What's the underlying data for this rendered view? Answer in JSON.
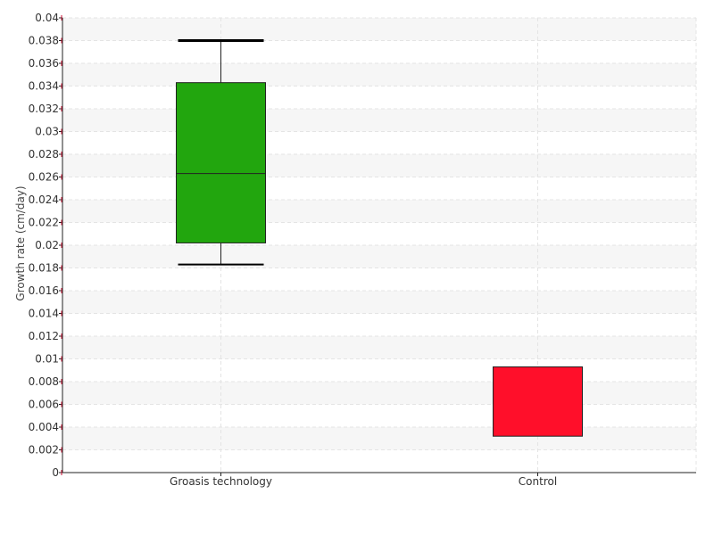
{
  "chart_data": {
    "type": "box",
    "title": "",
    "xlabel": "",
    "ylabel": "Growth rate (cm/day)",
    "ylim": [
      0,
      0.04
    ],
    "ytick_step": 0.002,
    "ytick_labels": [
      "0",
      "0.002",
      "0.004",
      "0.006",
      "0.008",
      "0.01",
      "0.012",
      "0.014",
      "0.016",
      "0.018",
      "0.02",
      "0.022",
      "0.024",
      "0.026",
      "0.028",
      "0.03",
      "0.032",
      "0.034",
      "0.036",
      "0.038",
      "0.04"
    ],
    "categories": [
      "Groasis technology",
      "Control"
    ],
    "boxes": [
      {
        "category": "Groasis technology",
        "whisker_low": 0.0183,
        "q1": 0.0202,
        "median": 0.0263,
        "q3": 0.0343,
        "whisker_high": 0.038,
        "color": "#22a60e"
      },
      {
        "category": "Control",
        "whisker_low": 0.0032,
        "q1": 0.0032,
        "median": 0.0032,
        "q3": 0.0093,
        "whisker_high": 0.0093,
        "color": "#ff0f2a"
      }
    ],
    "grid": true,
    "grid_style": "alternating-bands",
    "legend": "none",
    "colors": {
      "band": "#f6f6f6",
      "gridline": "#e4e4e4",
      "axis": "#222222",
      "tick_mark": "#cc1133",
      "box_outline": "#222222"
    }
  }
}
